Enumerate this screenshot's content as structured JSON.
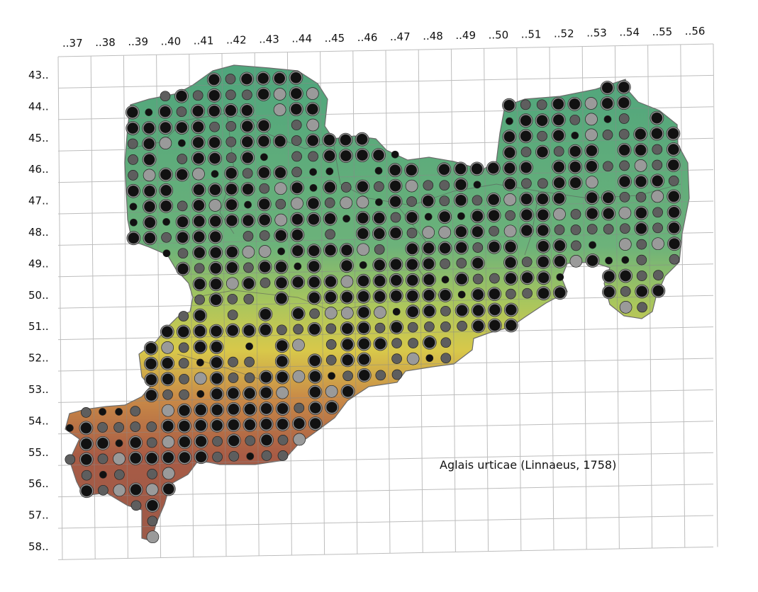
{
  "map": {
    "species": "Aglais urticae (Linnaeus, 1758)",
    "column_labels": [
      "..37",
      "..38",
      "..39",
      "..40",
      "..41",
      "..42",
      "..43",
      "..44",
      "..45",
      "..46",
      "..47",
      "..48",
      "..49",
      "..50",
      "..51",
      "..52",
      "..53",
      "..54",
      "..55",
      "..56"
    ],
    "row_labels": [
      "43..",
      "44..",
      "45..",
      "46..",
      "47..",
      "48..",
      "49..",
      "50..",
      "51..",
      "52..",
      "53..",
      "54..",
      "55..",
      "56..",
      "57..",
      "58.."
    ],
    "colors": {
      "grid_line": "#bdbdbd",
      "lowland": "#5fae7e",
      "midland": "#d7c64a",
      "upland": "#b55c48",
      "boundary": "#555555",
      "marker_recent": "#111111",
      "marker_older": "#5e5e5e",
      "marker_old": "#9a9a9a"
    }
  }
}
